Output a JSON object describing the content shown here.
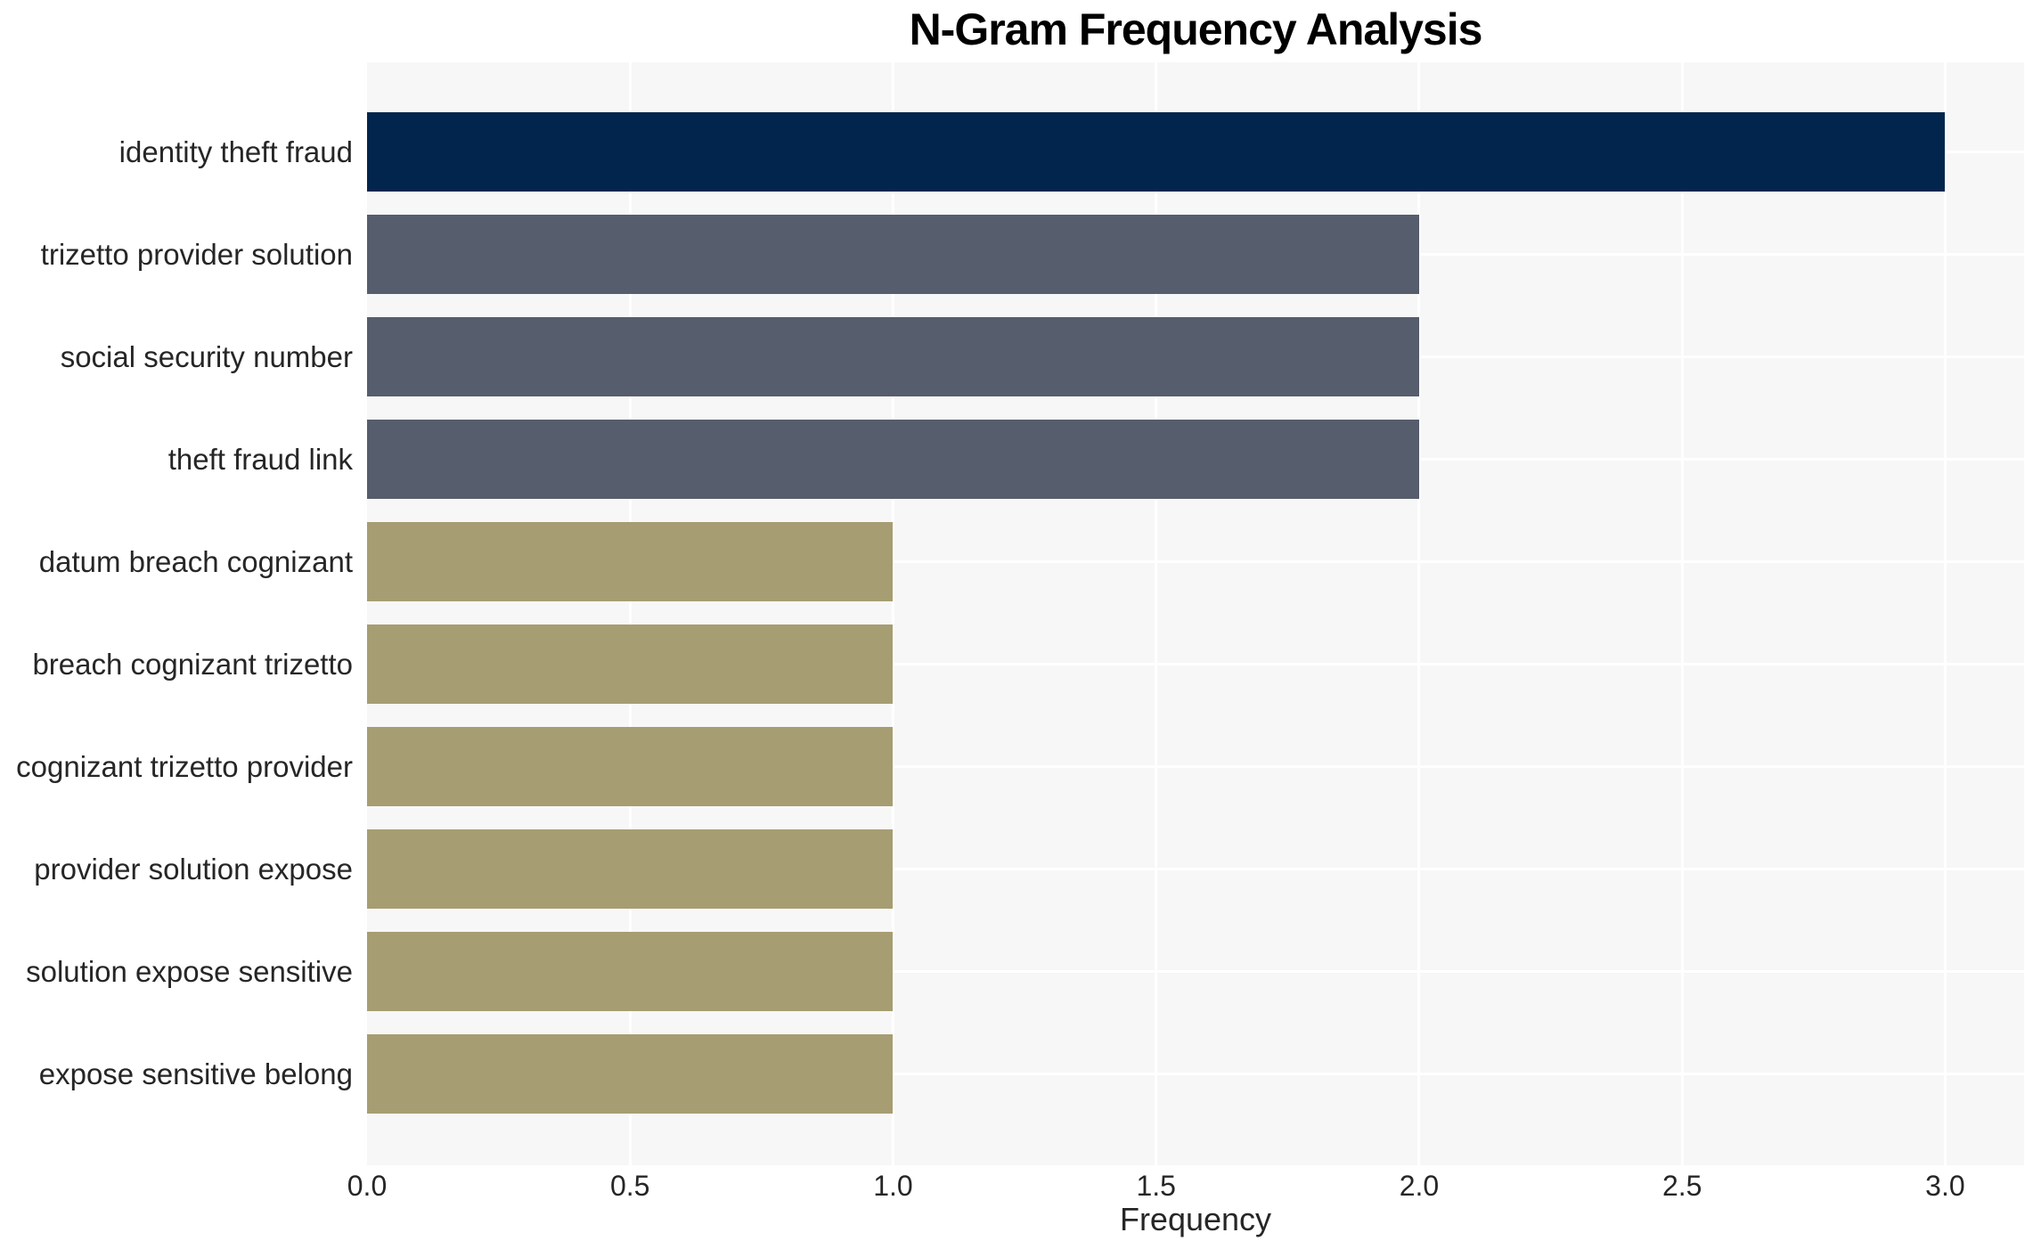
{
  "chart_data": {
    "type": "bar",
    "orientation": "horizontal",
    "title": "N-Gram Frequency Analysis",
    "xlabel": "Frequency",
    "ylabel": "",
    "categories": [
      "identity theft fraud",
      "trizetto provider solution",
      "social security number",
      "theft fraud link",
      "datum breach cognizant",
      "breach cognizant trizetto",
      "cognizant trizetto provider",
      "provider solution expose",
      "solution expose sensitive",
      "expose sensitive belong"
    ],
    "values": [
      3,
      2,
      2,
      2,
      1,
      1,
      1,
      1,
      1,
      1
    ],
    "bar_colors": [
      "#02254d",
      "#565d6c",
      "#565d6c",
      "#565d6c",
      "#a69d72",
      "#a69d72",
      "#a69d72",
      "#a69d72",
      "#a69d72",
      "#a69d72"
    ],
    "xticks": [
      0.0,
      0.5,
      1.0,
      1.5,
      2.0,
      2.5,
      3.0
    ],
    "xtick_labels": [
      "0.0",
      "0.5",
      "1.0",
      "1.5",
      "2.0",
      "2.5",
      "3.0"
    ],
    "xlim": [
      0,
      3.15
    ],
    "grid": "on",
    "legend": "none",
    "style": {
      "figure_background": "#ffffff",
      "plot_background": "#f7f7f7",
      "gridline_color": "#ffffff",
      "text_color": "#262626",
      "title_color": "#000000"
    }
  }
}
